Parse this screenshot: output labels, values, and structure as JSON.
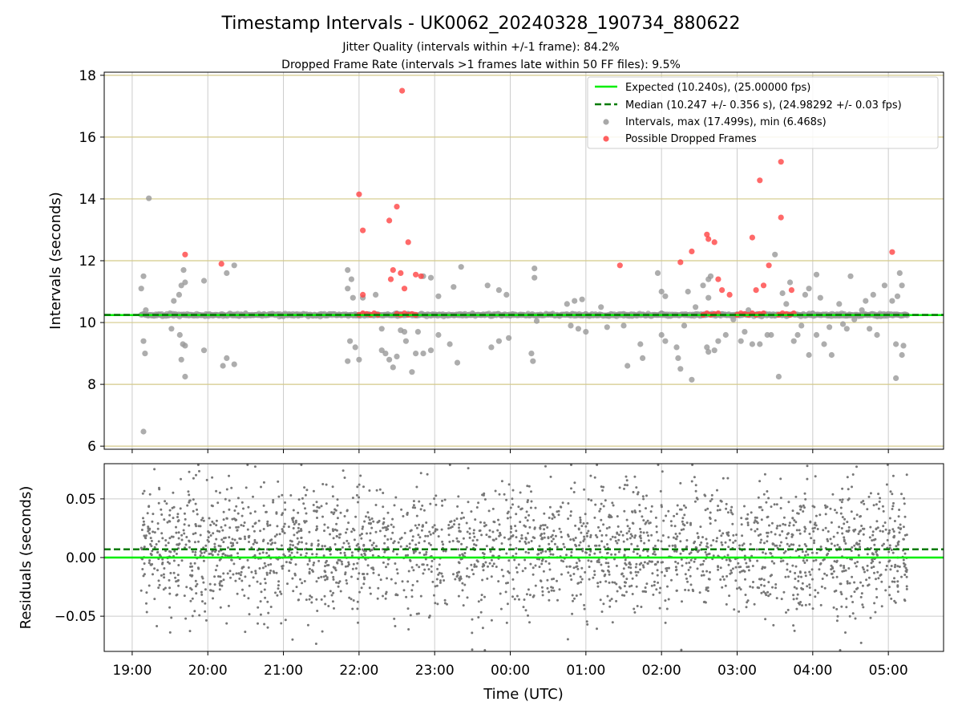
{
  "title": "Timestamp Intervals - UK0062_20240328_190734_880622",
  "subtitle_1": "Jitter Quality (intervals within +/-1 frame): 84.2%",
  "subtitle_2": "Dropped Frame Rate (intervals >1 frames late within 50 FF files): 9.5%",
  "chart_data": [
    {
      "type": "scatter",
      "panel": "intervals",
      "ylabel": "Intervals (seconds)",
      "xlabel": "",
      "ylim": [
        5.9,
        18.1
      ],
      "yticks": [
        6,
        8,
        10,
        12,
        14,
        16,
        18
      ],
      "grid": true,
      "x_unit": "hours since 19:00 UTC",
      "xlim": [
        -0.37,
        10.73
      ],
      "legend_position": "top-right",
      "legend": [
        "Expected (10.240s), (25.00000 fps)",
        "Median (10.247 +/- 0.356 s), (24.98292 +/- 0.03 fps)",
        "Intervals, max (17.499s), min (6.468s)",
        "Possible Dropped Frames"
      ],
      "expected_value": 10.24,
      "median_value": 10.247,
      "colors": {
        "expected": "#00ee00",
        "median": "#007a00",
        "intervals": "#999999",
        "dropped": "#ff4444"
      },
      "series": [
        {
          "name": "Intervals, max (17.499s), min (6.468s)",
          "points": [
            [
              0.15,
              6.47
            ],
            [
              0.22,
              14.02
            ],
            [
              0.15,
              11.5
            ],
            [
              0.12,
              11.1
            ],
            [
              0.18,
              10.4
            ],
            [
              0.15,
              9.4
            ],
            [
              0.17,
              9.0
            ],
            [
              0.55,
              10.7
            ],
            [
              0.52,
              9.8
            ],
            [
              0.65,
              11.2
            ],
            [
              0.68,
              11.7
            ],
            [
              0.62,
              10.9
            ],
            [
              0.7,
              11.3
            ],
            [
              0.63,
              9.6
            ],
            [
              0.67,
              9.3
            ],
            [
              0.7,
              9.25
            ],
            [
              0.65,
              8.8
            ],
            [
              0.7,
              8.25
            ],
            [
              0.95,
              11.35
            ],
            [
              0.95,
              9.1
            ],
            [
              1.25,
              11.6
            ],
            [
              1.35,
              11.85
            ],
            [
              1.25,
              8.85
            ],
            [
              1.2,
              8.6
            ],
            [
              1.35,
              8.65
            ],
            [
              2.85,
              11.7
            ],
            [
              2.9,
              11.4
            ],
            [
              2.85,
              11.1
            ],
            [
              2.92,
              10.8
            ],
            [
              2.95,
              9.2
            ],
            [
              2.88,
              9.4
            ],
            [
              2.85,
              8.75
            ],
            [
              3.0,
              8.8
            ],
            [
              3.05,
              10.8
            ],
            [
              3.22,
              10.9
            ],
            [
              3.3,
              9.8
            ],
            [
              3.3,
              9.1
            ],
            [
              3.35,
              9.0
            ],
            [
              3.4,
              8.8
            ],
            [
              3.45,
              8.55
            ],
            [
              3.5,
              8.9
            ],
            [
              3.55,
              9.75
            ],
            [
              3.6,
              9.7
            ],
            [
              3.62,
              9.4
            ],
            [
              3.7,
              8.4
            ],
            [
              3.75,
              9.0
            ],
            [
              3.78,
              9.7
            ],
            [
              3.85,
              9.0
            ],
            [
              3.95,
              9.1
            ],
            [
              3.85,
              11.5
            ],
            [
              3.95,
              11.45
            ],
            [
              4.05,
              9.6
            ],
            [
              4.05,
              10.85
            ],
            [
              4.25,
              11.15
            ],
            [
              4.35,
              11.8
            ],
            [
              4.3,
              8.7
            ],
            [
              4.2,
              9.3
            ],
            [
              4.7,
              11.2
            ],
            [
              4.85,
              11.05
            ],
            [
              4.95,
              10.9
            ],
            [
              4.75,
              9.2
            ],
            [
              4.85,
              9.4
            ],
            [
              4.98,
              9.5
            ],
            [
              5.32,
              11.45
            ],
            [
              5.32,
              11.75
            ],
            [
              5.28,
              9.0
            ],
            [
              5.3,
              8.75
            ],
            [
              5.35,
              10.05
            ],
            [
              5.75,
              10.6
            ],
            [
              5.85,
              10.7
            ],
            [
              5.95,
              10.75
            ],
            [
              5.8,
              9.9
            ],
            [
              5.9,
              9.8
            ],
            [
              6.0,
              9.7
            ],
            [
              6.2,
              10.5
            ],
            [
              6.28,
              9.85
            ],
            [
              6.5,
              9.9
            ],
            [
              6.55,
              8.6
            ],
            [
              6.72,
              9.3
            ],
            [
              6.75,
              8.85
            ],
            [
              6.95,
              11.6
            ],
            [
              7.0,
              11.0
            ],
            [
              7.05,
              10.85
            ],
            [
              7.0,
              9.6
            ],
            [
              7.05,
              9.4
            ],
            [
              7.2,
              9.2
            ],
            [
              7.22,
              8.85
            ],
            [
              7.25,
              8.5
            ],
            [
              7.4,
              8.15
            ],
            [
              7.3,
              9.9
            ],
            [
              7.35,
              11.0
            ],
            [
              7.45,
              10.5
            ],
            [
              7.55,
              11.2
            ],
            [
              7.62,
              11.4
            ],
            [
              7.65,
              11.5
            ],
            [
              7.62,
              10.8
            ],
            [
              7.6,
              9.2
            ],
            [
              7.62,
              9.05
            ],
            [
              7.7,
              9.1
            ],
            [
              7.75,
              9.4
            ],
            [
              7.85,
              9.6
            ],
            [
              7.95,
              10.1
            ],
            [
              8.05,
              9.4
            ],
            [
              8.1,
              9.7
            ],
            [
              8.15,
              10.4
            ],
            [
              8.2,
              9.3
            ],
            [
              8.3,
              9.3
            ],
            [
              8.4,
              9.6
            ],
            [
              8.5,
              12.2
            ],
            [
              8.45,
              9.6
            ],
            [
              8.55,
              8.25
            ],
            [
              8.6,
              10.95
            ],
            [
              8.65,
              10.6
            ],
            [
              8.7,
              11.3
            ],
            [
              8.75,
              9.4
            ],
            [
              8.8,
              9.6
            ],
            [
              8.85,
              9.9
            ],
            [
              8.9,
              10.9
            ],
            [
              8.95,
              11.1
            ],
            [
              8.95,
              8.95
            ],
            [
              9.05,
              11.55
            ],
            [
              9.05,
              9.6
            ],
            [
              9.1,
              10.8
            ],
            [
              9.15,
              9.3
            ],
            [
              9.22,
              9.85
            ],
            [
              9.25,
              8.95
            ],
            [
              9.35,
              10.6
            ],
            [
              9.4,
              9.95
            ],
            [
              9.45,
              9.8
            ],
            [
              9.5,
              11.5
            ],
            [
              9.55,
              10.1
            ],
            [
              9.65,
              10.4
            ],
            [
              9.7,
              10.7
            ],
            [
              9.75,
              9.8
            ],
            [
              9.8,
              10.9
            ],
            [
              9.85,
              9.6
            ],
            [
              9.9,
              10.2
            ],
            [
              9.95,
              11.2
            ],
            [
              10.05,
              10.7
            ],
            [
              10.1,
              9.3
            ],
            [
              10.1,
              8.2
            ],
            [
              10.15,
              11.6
            ],
            [
              10.18,
              11.2
            ],
            [
              10.12,
              10.85
            ],
            [
              10.2,
              9.25
            ],
            [
              10.18,
              8.95
            ],
            [
              0.5,
              10.3
            ],
            [
              1.0,
              10.25
            ],
            [
              1.5,
              10.3
            ],
            [
              2.0,
              10.2
            ],
            [
              2.5,
              10.28
            ],
            [
              3.0,
              10.22
            ],
            [
              3.5,
              10.3
            ],
            [
              4.0,
              10.25
            ],
            [
              4.5,
              10.3
            ],
            [
              5.0,
              10.22
            ],
            [
              5.5,
              10.25
            ],
            [
              6.0,
              10.28
            ],
            [
              6.5,
              10.22
            ],
            [
              7.0,
              10.3
            ],
            [
              7.5,
              10.24
            ],
            [
              8.0,
              10.27
            ],
            [
              8.5,
              10.22
            ],
            [
              9.0,
              10.3
            ],
            [
              9.5,
              10.25
            ],
            [
              10.0,
              10.28
            ]
          ]
        },
        {
          "name": "Possible Dropped Frames",
          "points": [
            [
              0.7,
              12.2
            ],
            [
              1.18,
              11.9
            ],
            [
              3.0,
              14.15
            ],
            [
              3.05,
              12.98
            ],
            [
              3.4,
              13.3
            ],
            [
              3.5,
              13.75
            ],
            [
              3.55,
              11.6
            ],
            [
              3.6,
              11.1
            ],
            [
              3.65,
              12.6
            ],
            [
              3.75,
              11.55
            ],
            [
              3.82,
              11.5
            ],
            [
              3.42,
              11.4
            ],
            [
              3.45,
              11.7
            ],
            [
              3.05,
              10.9
            ],
            [
              3.57,
              17.5
            ],
            [
              6.45,
              11.85
            ],
            [
              7.25,
              11.95
            ],
            [
              7.4,
              12.3
            ],
            [
              7.6,
              12.85
            ],
            [
              7.62,
              12.7
            ],
            [
              7.7,
              12.6
            ],
            [
              7.75,
              11.4
            ],
            [
              7.8,
              11.05
            ],
            [
              7.9,
              10.9
            ],
            [
              8.2,
              12.75
            ],
            [
              8.3,
              14.6
            ],
            [
              8.35,
              11.2
            ],
            [
              8.25,
              11.05
            ],
            [
              8.42,
              11.85
            ],
            [
              8.58,
              15.2
            ],
            [
              8.58,
              13.4
            ],
            [
              8.72,
              11.05
            ],
            [
              10.05,
              12.28
            ],
            [
              3.0,
              10.25
            ],
            [
              3.05,
              10.3
            ],
            [
              3.1,
              10.28
            ],
            [
              3.15,
              10.25
            ],
            [
              3.2,
              10.3
            ],
            [
              3.25,
              10.25
            ],
            [
              3.5,
              10.28
            ],
            [
              3.55,
              10.25
            ],
            [
              3.6,
              10.3
            ],
            [
              3.65,
              10.25
            ],
            [
              3.7,
              10.28
            ],
            [
              3.75,
              10.25
            ],
            [
              7.55,
              10.25
            ],
            [
              7.6,
              10.3
            ],
            [
              7.65,
              10.25
            ],
            [
              7.7,
              10.28
            ],
            [
              7.75,
              10.3
            ],
            [
              8.0,
              10.25
            ],
            [
              8.05,
              10.3
            ],
            [
              8.1,
              10.28
            ],
            [
              8.15,
              10.25
            ],
            [
              8.2,
              10.3
            ],
            [
              8.25,
              10.25
            ],
            [
              8.3,
              10.28
            ],
            [
              8.35,
              10.3
            ],
            [
              8.55,
              10.25
            ],
            [
              8.6,
              10.3
            ],
            [
              8.65,
              10.28
            ],
            [
              8.7,
              10.25
            ],
            [
              8.75,
              10.3
            ]
          ]
        }
      ]
    },
    {
      "type": "scatter",
      "panel": "residuals",
      "ylabel": "Residuals (seconds)",
      "xlabel": "Time (UTC)",
      "x_unit": "hours since 19:00 UTC",
      "xlim": [
        -0.37,
        10.73
      ],
      "ylim": [
        -0.08,
        0.08
      ],
      "yticks": [
        0.05,
        0.0,
        -0.05
      ],
      "ytick_labels": [
        "0.05",
        "0.00",
        "−0.05"
      ],
      "xticks": [
        0,
        1,
        2,
        3,
        4,
        5,
        6,
        7,
        8,
        9,
        10
      ],
      "xtick_labels": [
        "19:00",
        "20:00",
        "21:00",
        "22:00",
        "23:00",
        "00:00",
        "01:00",
        "02:00",
        "03:00",
        "04:00",
        "05:00"
      ],
      "grid": true,
      "expected_value": 0.0,
      "median_value": 0.007,
      "point_count": 2600,
      "x_range_of_points": [
        0.12,
        10.25
      ],
      "value_spread_sd": 0.027,
      "colors": {
        "expected": "#00ee00",
        "median": "#007a00",
        "points": "#777777"
      }
    }
  ]
}
